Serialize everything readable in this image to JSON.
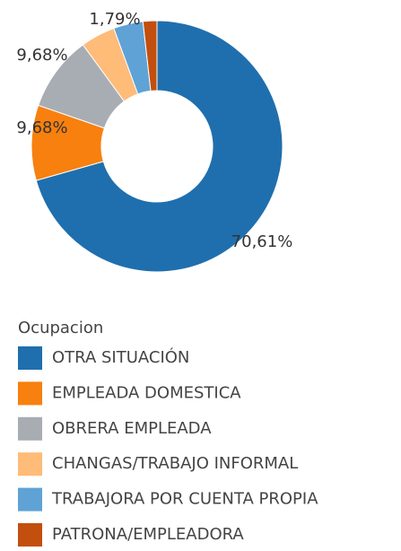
{
  "chart_data": {
    "type": "donut",
    "categories": [
      "OTRA SITUACIÓN",
      "EMPLEADA DOMESTICA",
      "OBRERA EMPLEADA",
      "CHANGAS/TRABAJO INFORMAL",
      "TRABAJORA POR CUENTA PROPIA",
      "PATRONA/EMPLEADORA"
    ],
    "values": [
      70.61,
      9.68,
      9.68,
      4.44,
      3.8,
      1.79
    ],
    "value_labels": [
      "70,61%",
      "9,68%",
      "9,68%",
      null,
      null,
      "1,79%"
    ],
    "colors": [
      "#1f6fae",
      "#f7800f",
      "#a8adb4",
      "#ffbb78",
      "#5fa2d6",
      "#c24f0d"
    ],
    "legend_title": "Ocupacion"
  }
}
